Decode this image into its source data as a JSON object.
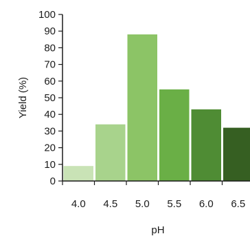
{
  "chart_data": {
    "type": "bar",
    "title": "",
    "xlabel": "pH",
    "ylabel": "Yield (%)",
    "categories": [
      "4.0",
      "4.5",
      "5.0",
      "5.5",
      "6.0",
      "6.5"
    ],
    "values": [
      9,
      34,
      88,
      55,
      43,
      32
    ],
    "ylim": [
      0,
      100
    ],
    "yticks": [
      "0",
      "10",
      "20",
      "30",
      "40",
      "50",
      "60",
      "70",
      "80",
      "90",
      "100"
    ],
    "grid": false,
    "legend": "none",
    "bar_colors": [
      "#c9e3b6",
      "#a8d38c",
      "#8cc466",
      "#6aaf46",
      "#4f8c34",
      "#365f22"
    ]
  }
}
